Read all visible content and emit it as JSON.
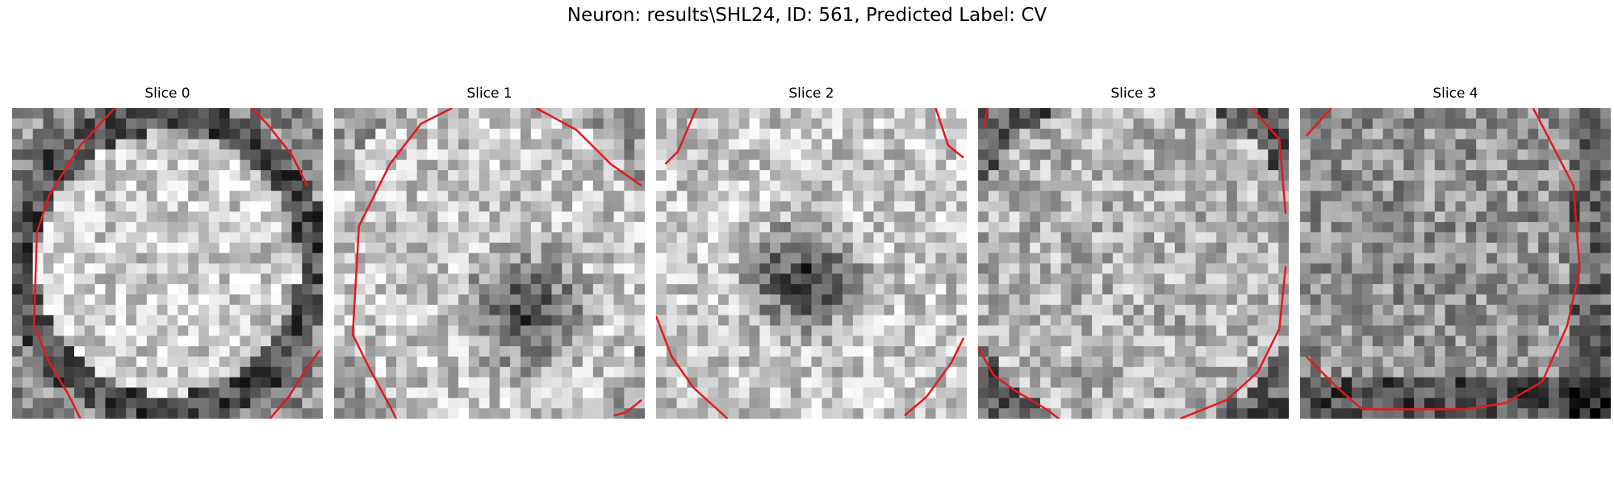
{
  "figure": {
    "title": "Neuron: results\\SHL24, ID: 561, Predicted Label: CV",
    "panels": [
      {
        "title": "Slice 0",
        "pattern": "bright-disk-dark-rim",
        "seed": 11
      },
      {
        "title": "Slice 1",
        "pattern": "bright-with-dark-lower-center",
        "seed": 23
      },
      {
        "title": "Slice 2",
        "pattern": "bright-with-dark-center",
        "seed": 37
      },
      {
        "title": "Slice 3",
        "pattern": "uniform-gray-dark-corners",
        "seed": 41
      },
      {
        "title": "Slice 4",
        "pattern": "gray-dark-bottom",
        "seed": 53
      }
    ],
    "contour_color": "#e31a1c",
    "colormap": "grayscale"
  }
}
